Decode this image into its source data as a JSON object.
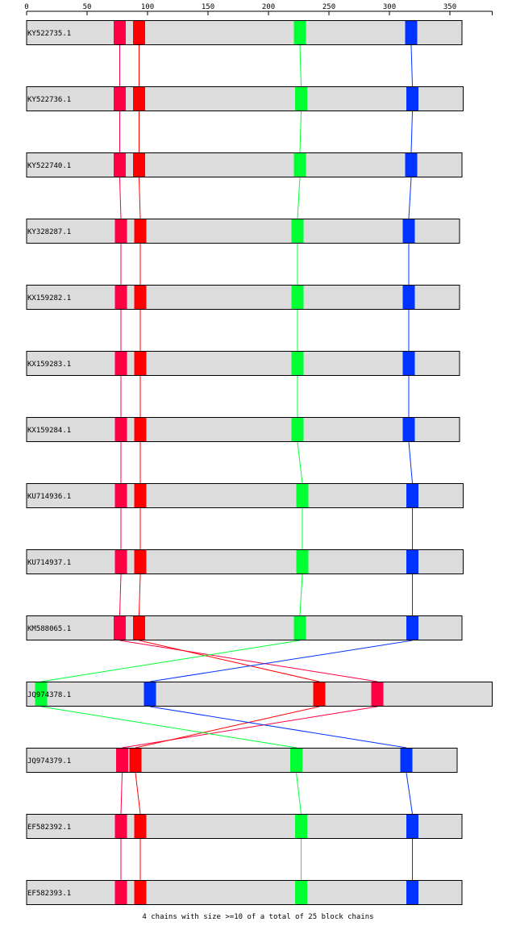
{
  "axis": {
    "ticks": [
      0,
      50,
      100,
      150,
      200,
      250,
      300,
      350
    ],
    "max": 385
  },
  "block_colors": [
    "#ff0044",
    "#ff0000",
    "#00ff33",
    "#0033ff"
  ],
  "sequences": [
    {
      "name": "KY522735.1",
      "length": 360,
      "blocks": [
        72,
        88,
        221,
        313
      ]
    },
    {
      "name": "KY522736.1",
      "length": 361,
      "blocks": [
        72,
        88,
        222,
        314
      ]
    },
    {
      "name": "KY522740.1",
      "length": 360,
      "blocks": [
        72,
        88,
        221,
        313
      ]
    },
    {
      "name": "KY328287.1",
      "length": 358,
      "blocks": [
        73,
        89,
        219,
        311
      ]
    },
    {
      "name": "KX159282.1",
      "length": 358,
      "blocks": [
        73,
        89,
        219,
        311
      ]
    },
    {
      "name": "KX159283.1",
      "length": 358,
      "blocks": [
        73,
        89,
        219,
        311
      ]
    },
    {
      "name": "KX159284.1",
      "length": 358,
      "blocks": [
        73,
        89,
        219,
        311
      ]
    },
    {
      "name": "KU714936.1",
      "length": 361,
      "blocks": [
        73,
        89,
        223,
        314
      ]
    },
    {
      "name": "KU714937.1",
      "length": 361,
      "blocks": [
        73,
        89,
        223,
        314
      ]
    },
    {
      "name": "KM588065.1",
      "length": 360,
      "blocks": [
        72,
        88,
        221,
        314
      ]
    },
    {
      "name": "JQ974378.1",
      "length": 385,
      "blocks": [
        285,
        237,
        7,
        97
      ]
    },
    {
      "name": "JQ974379.1",
      "length": 356,
      "blocks": [
        74,
        85,
        218,
        309
      ]
    },
    {
      "name": "EF582392.1",
      "length": 360,
      "blocks": [
        73,
        89,
        222,
        314
      ]
    },
    {
      "name": "EF582393.1",
      "length": 360,
      "blocks": [
        73,
        89,
        222,
        314
      ]
    }
  ],
  "footer": "4 chains with size >=10 of a total of 25 block chains"
}
